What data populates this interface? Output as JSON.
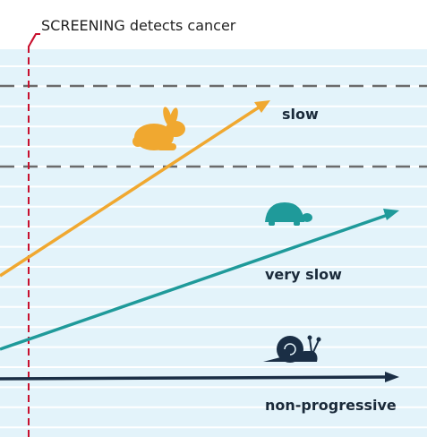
{
  "header": {
    "emphasis": "SCREENING",
    "text": "detects cancer"
  },
  "labels": {
    "slow": "slow",
    "very_slow": "very slow",
    "non_progressive": "non-progressive"
  }
}
